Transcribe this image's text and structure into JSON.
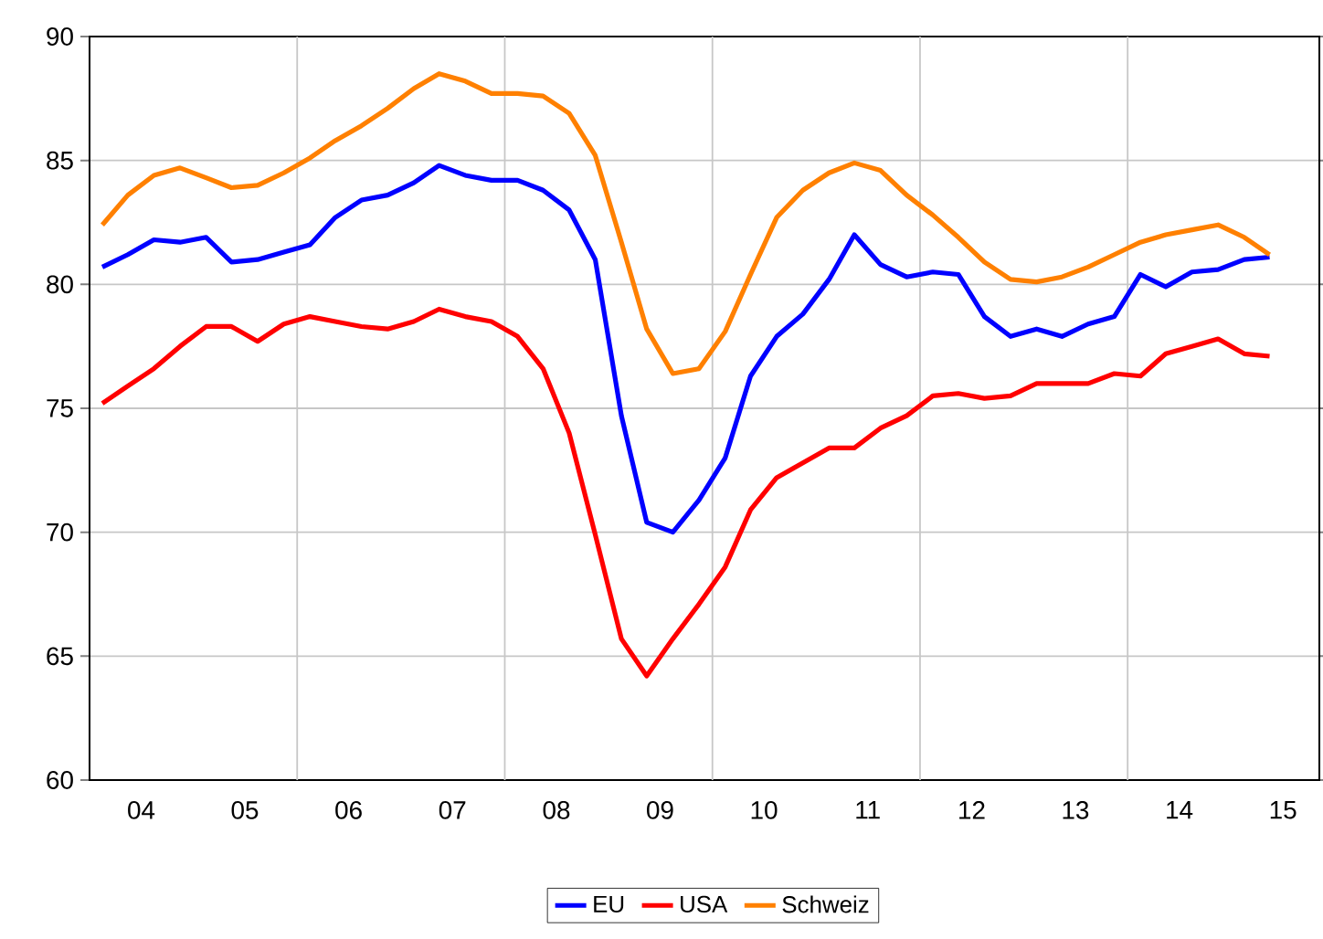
{
  "chart_data": {
    "type": "line",
    "x": [
      "2004-02-15",
      "2004-05-15",
      "2004-08-15",
      "2004-11-15",
      "2005-02-15",
      "2005-05-15",
      "2005-08-15",
      "2005-11-15",
      "2006-02-15",
      "2006-05-15",
      "2006-08-15",
      "2006-11-15",
      "2007-02-15",
      "2007-05-15",
      "2007-08-15",
      "2007-11-15",
      "2008-02-15",
      "2008-05-15",
      "2008-08-15",
      "2008-11-15",
      "2009-02-15",
      "2009-05-15",
      "2009-08-15",
      "2009-11-15",
      "2010-02-15",
      "2010-05-15",
      "2010-08-15",
      "2010-11-15",
      "2011-02-15",
      "2011-05-15",
      "2011-08-15",
      "2011-11-15",
      "2012-02-15",
      "2012-05-15",
      "2012-08-15",
      "2012-11-15",
      "2013-02-15",
      "2013-05-15",
      "2013-08-15",
      "2013-11-15",
      "2014-02-15",
      "2014-05-15",
      "2014-08-15",
      "2014-11-15",
      "2015-02-15",
      "2015-05-15"
    ],
    "xlim": [
      "2004-01-01",
      "2015-11-06"
    ],
    "xticks": [
      {
        "value": "2004-07-01",
        "label": "04"
      },
      {
        "value": "2005-07-01",
        "label": "05"
      },
      {
        "value": "2006-07-01",
        "label": "06"
      },
      {
        "value": "2007-07-01",
        "label": "07"
      },
      {
        "value": "2008-07-01",
        "label": "08"
      },
      {
        "value": "2009-07-01",
        "label": "09"
      },
      {
        "value": "2010-07-01",
        "label": "10"
      },
      {
        "value": "2011-07-01",
        "label": "11"
      },
      {
        "value": "2012-07-01",
        "label": "12"
      },
      {
        "value": "2013-07-01",
        "label": "13"
      },
      {
        "value": "2014-07-01",
        "label": "14"
      },
      {
        "value": "2015-07-01",
        "label": "15"
      },
      {
        "value": "2006-01-01",
        "label": null
      },
      {
        "value": "2008-01-01",
        "label": null
      },
      {
        "value": "2010-01-01",
        "label": null
      },
      {
        "value": "2012-01-01",
        "label": null
      },
      {
        "value": "2014-01-01",
        "label": null
      }
    ],
    "series": [
      {
        "name": "EU",
        "color": "#0000ff",
        "values": [
          80.7,
          81.2,
          81.8,
          81.7,
          81.9,
          80.9,
          81.0,
          81.3,
          81.6,
          82.7,
          83.4,
          83.6,
          84.1,
          84.8,
          84.4,
          84.2,
          84.2,
          83.8,
          83.0,
          81.0,
          74.7,
          70.4,
          70.0,
          71.3,
          73.0,
          76.3,
          77.9,
          78.8,
          80.2,
          82.0,
          80.8,
          80.3,
          80.5,
          80.4,
          78.7,
          77.9,
          78.2,
          77.9,
          78.4,
          78.7,
          80.4,
          79.9,
          80.5,
          80.6,
          81.0,
          81.1
        ]
      },
      {
        "name": "USA",
        "color": "#ff0000",
        "values": [
          75.2,
          75.9,
          76.6,
          77.5,
          78.3,
          78.3,
          77.7,
          78.4,
          78.7,
          78.5,
          78.3,
          78.2,
          78.5,
          79.0,
          78.7,
          78.5,
          77.9,
          76.6,
          74.0,
          69.9,
          65.7,
          64.2,
          65.7,
          67.1,
          68.6,
          70.9,
          72.2,
          72.8,
          73.4,
          73.4,
          74.2,
          74.7,
          75.5,
          75.6,
          75.4,
          75.5,
          76.0,
          76.0,
          76.0,
          76.4,
          76.3,
          77.2,
          77.5,
          77.8,
          77.2,
          77.1
        ]
      },
      {
        "name": "Schweiz",
        "color": "#ff8000",
        "values": [
          82.4,
          83.6,
          84.4,
          84.7,
          84.3,
          83.9,
          84.0,
          84.5,
          85.1,
          85.8,
          86.4,
          87.1,
          87.9,
          88.5,
          88.2,
          87.7,
          87.7,
          87.6,
          86.9,
          85.2,
          81.7,
          78.2,
          76.4,
          76.6,
          78.1,
          80.4,
          82.7,
          83.8,
          84.5,
          84.9,
          84.6,
          83.6,
          82.8,
          81.9,
          80.9,
          80.2,
          80.1,
          80.3,
          80.7,
          81.2,
          81.7,
          82.0,
          82.2,
          82.4,
          81.9,
          81.2
        ]
      }
    ],
    "ylim": [
      60,
      90
    ],
    "yticks": [
      60,
      65,
      70,
      75,
      80,
      85,
      90
    ],
    "grid": true,
    "legend": "bottom",
    "line_style": "solid",
    "marker": "none"
  }
}
